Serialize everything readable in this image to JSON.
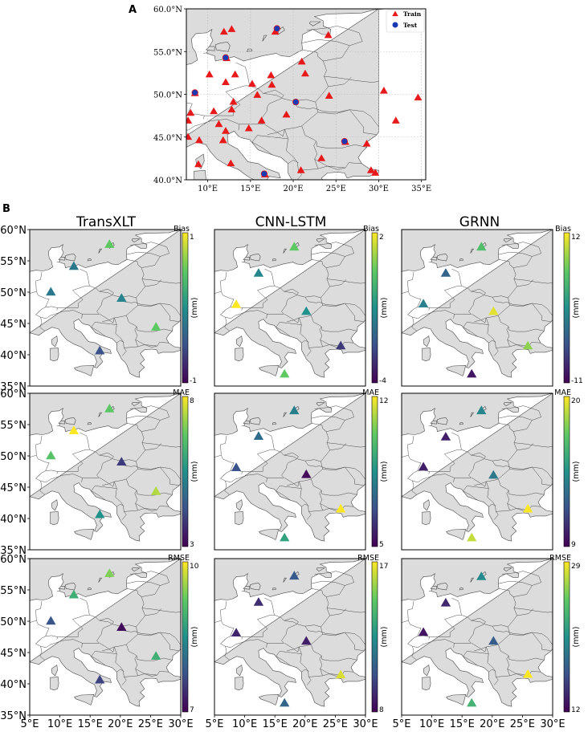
{
  "colors": {
    "land": "#dcdcdc",
    "border": "#4a4a4a",
    "train": "#e8191a",
    "test": "#1a3ab4",
    "viridis": [
      "#440154",
      "#3b528b",
      "#21918c",
      "#5ec962",
      "#fde725"
    ]
  },
  "panel_a": {
    "label": "A",
    "legend": {
      "train": "Train",
      "test": "Test"
    },
    "x_ticks": [
      "10°E",
      "15°E",
      "20°E",
      "25°E",
      "30°E",
      "35°E"
    ],
    "y_ticks": [
      "60.0°N",
      "55.0°N",
      "50.0°N",
      "45.0°N",
      "40.0°N"
    ]
  },
  "panel_b": {
    "label": "B",
    "columns": [
      "TransXLT",
      "CNN-LSTM",
      "GRNN"
    ],
    "x_ticks": [
      "5°E",
      "10°E",
      "15°E",
      "20°E",
      "25°E",
      "30°E"
    ],
    "y_ticks": [
      "60°N",
      "55°N",
      "50°N",
      "45°N",
      "40°N",
      "35°N"
    ],
    "unit": "(mm)"
  },
  "chart_data": [
    {
      "type": "scatter",
      "title": "A",
      "xlim": [
        7.5,
        35.5
      ],
      "ylim": [
        40,
        60
      ],
      "series": [
        {
          "name": "Train",
          "points": [
            [
              17.9,
              57.3
            ],
            [
              11.9,
              57.3
            ],
            [
              12.8,
              57.6
            ],
            [
              24.1,
              56.9
            ],
            [
              12.2,
              54.2
            ],
            [
              21.0,
              53.8
            ],
            [
              21.4,
              52.4
            ],
            [
              10.2,
              52.3
            ],
            [
              12.1,
              51.4
            ],
            [
              13.2,
              52.3
            ],
            [
              15.2,
              51.2
            ],
            [
              17.4,
              52.2
            ],
            [
              17.5,
              51.1
            ],
            [
              8.5,
              50.1
            ],
            [
              15.8,
              49.9
            ],
            [
              24.2,
              49.8
            ],
            [
              30.6,
              50.4
            ],
            [
              34.6,
              49.6
            ],
            [
              13.0,
              49.1
            ],
            [
              10.7,
              48.0
            ],
            [
              12.8,
              48.2
            ],
            [
              8.0,
              47.8
            ],
            [
              16.3,
              46.9
            ],
            [
              19.2,
              47.6
            ],
            [
              7.7,
              46.9
            ],
            [
              11.3,
              46.5
            ],
            [
              12.1,
              45.7
            ],
            [
              14.8,
              46.0
            ],
            [
              32.0,
              46.9
            ],
            [
              7.7,
              45.0
            ],
            [
              9.0,
              44.6
            ],
            [
              11.8,
              44.6
            ],
            [
              26.1,
              44.4
            ],
            [
              28.6,
              44.2
            ],
            [
              12.7,
              41.9
            ],
            [
              8.9,
              41.8
            ],
            [
              20.9,
              41.1
            ],
            [
              23.3,
              42.5
            ],
            [
              29.1,
              41.1
            ],
            [
              29.6,
              40.8
            ],
            [
              16.7,
              40.6
            ]
          ]
        },
        {
          "name": "Test",
          "points": [
            [
              18.1,
              57.6
            ],
            [
              12.1,
              54.2
            ],
            [
              8.5,
              50.1
            ],
            [
              20.3,
              49.0
            ],
            [
              26.0,
              44.4
            ],
            [
              16.6,
              40.6
            ]
          ]
        }
      ]
    },
    {
      "type": "scatter",
      "title": "TransXLT",
      "metric": "Bias",
      "xlim": [
        5,
        30
      ],
      "ylim": [
        35,
        60
      ],
      "cbar_ticks": [
        "1",
        "-1"
      ],
      "vmin": -1,
      "vmax": 1,
      "points": [
        [
          18.2,
          57.6,
          0.5
        ],
        [
          12.3,
          54.1,
          -0.2
        ],
        [
          8.5,
          50.0,
          -0.2
        ],
        [
          20.2,
          49.0,
          -0.1
        ],
        [
          25.9,
          44.4,
          0.5
        ],
        [
          16.6,
          40.6,
          -0.5
        ]
      ]
    },
    {
      "type": "scatter",
      "title": "CNN-LSTM",
      "metric": "Bias",
      "xlim": [
        5,
        30
      ],
      "ylim": [
        35,
        60
      ],
      "cbar_ticks": [
        "2",
        "-4"
      ],
      "vmin": -4,
      "vmax": 2,
      "points": [
        [
          18.2,
          57.2,
          0.5
        ],
        [
          12.3,
          53.0,
          -1.3
        ],
        [
          8.6,
          48.0,
          2.0
        ],
        [
          20.2,
          46.9,
          -1.0
        ],
        [
          25.9,
          41.4,
          -3.0
        ],
        [
          16.6,
          36.9,
          0.5
        ]
      ]
    },
    {
      "type": "scatter",
      "title": "GRNN",
      "metric": "Bias",
      "xlim": [
        5,
        30
      ],
      "ylim": [
        35,
        60
      ],
      "cbar_ticks": [
        "12",
        "-11"
      ],
      "vmin": -11,
      "vmax": 12,
      "points": [
        [
          18.2,
          57.2,
          5.0
        ],
        [
          12.3,
          53.0,
          -3.5
        ],
        [
          8.6,
          48.1,
          -1.0
        ],
        [
          20.2,
          46.9,
          11.0
        ],
        [
          25.9,
          41.4,
          8.0
        ],
        [
          16.6,
          36.9,
          -9.5
        ]
      ]
    },
    {
      "type": "scatter",
      "title": "TransXLT",
      "metric": "MAE",
      "xlim": [
        5,
        30
      ],
      "ylim": [
        35,
        60
      ],
      "cbar_ticks": [
        "8",
        "3"
      ],
      "vmin": 3,
      "vmax": 8,
      "points": [
        [
          18.2,
          57.5,
          6.7
        ],
        [
          12.3,
          54.0,
          8.0
        ],
        [
          8.5,
          50.0,
          6.6
        ],
        [
          20.2,
          49.0,
          3.9
        ],
        [
          25.9,
          44.3,
          7.4
        ],
        [
          16.6,
          40.6,
          5.5
        ]
      ]
    },
    {
      "type": "scatter",
      "title": "CNN-LSTM",
      "metric": "MAE",
      "xlim": [
        5,
        30
      ],
      "ylim": [
        35,
        60
      ],
      "cbar_ticks": [
        "12",
        "5"
      ],
      "vmin": 5,
      "vmax": 12,
      "points": [
        [
          18.2,
          57.2,
          8.0
        ],
        [
          12.3,
          53.1,
          7.5
        ],
        [
          8.6,
          48.1,
          6.8
        ],
        [
          20.2,
          47.0,
          5.2
        ],
        [
          25.9,
          41.5,
          12.0
        ],
        [
          16.6,
          36.9,
          9.0
        ]
      ]
    },
    {
      "type": "scatter",
      "title": "GRNN",
      "metric": "MAE",
      "xlim": [
        5,
        30
      ],
      "ylim": [
        35,
        60
      ],
      "cbar_ticks": [
        "20",
        "9"
      ],
      "vmin": 9,
      "vmax": 20,
      "points": [
        [
          18.2,
          57.2,
          14.0
        ],
        [
          12.3,
          53.0,
          10.0
        ],
        [
          8.6,
          48.2,
          10.0
        ],
        [
          20.2,
          46.9,
          13.5
        ],
        [
          25.9,
          41.5,
          20.0
        ],
        [
          16.6,
          36.9,
          19.0
        ]
      ]
    },
    {
      "type": "scatter",
      "title": "TransXLT",
      "metric": "RMSE",
      "xlim": [
        5,
        30
      ],
      "ylim": [
        35,
        60
      ],
      "cbar_ticks": [
        "10",
        "7"
      ],
      "vmin": 7,
      "vmax": 10,
      "points": [
        [
          18.2,
          57.6,
          9.4
        ],
        [
          12.3,
          54.2,
          8.9
        ],
        [
          8.5,
          50.0,
          7.8
        ],
        [
          20.2,
          49.0,
          7.1
        ],
        [
          25.9,
          44.4,
          8.9
        ],
        [
          16.6,
          40.6,
          7.6
        ]
      ]
    },
    {
      "type": "scatter",
      "title": "CNN-LSTM",
      "metric": "RMSE",
      "xlim": [
        5,
        30
      ],
      "ylim": [
        35,
        60
      ],
      "cbar_ticks": [
        "17",
        "8"
      ],
      "vmin": 8,
      "vmax": 17,
      "points": [
        [
          18.2,
          57.2,
          10.5
        ],
        [
          12.3,
          53.0,
          9.2
        ],
        [
          8.6,
          48.1,
          9.0
        ],
        [
          20.2,
          46.8,
          8.8
        ],
        [
          25.9,
          41.4,
          16.5
        ],
        [
          16.6,
          36.9,
          11.0
        ]
      ]
    },
    {
      "type": "scatter",
      "title": "GRNN",
      "metric": "RMSE",
      "xlim": [
        5,
        30
      ],
      "ylim": [
        35,
        60
      ],
      "cbar_ticks": [
        "29",
        "12"
      ],
      "vmin": 12,
      "vmax": 29,
      "points": [
        [
          18.2,
          57.1,
          20.0
        ],
        [
          12.3,
          52.9,
          14.0
        ],
        [
          8.6,
          48.2,
          13.0
        ],
        [
          20.2,
          46.8,
          17.0
        ],
        [
          25.9,
          41.5,
          29.0
        ],
        [
          16.6,
          36.9,
          23.0
        ]
      ]
    }
  ]
}
